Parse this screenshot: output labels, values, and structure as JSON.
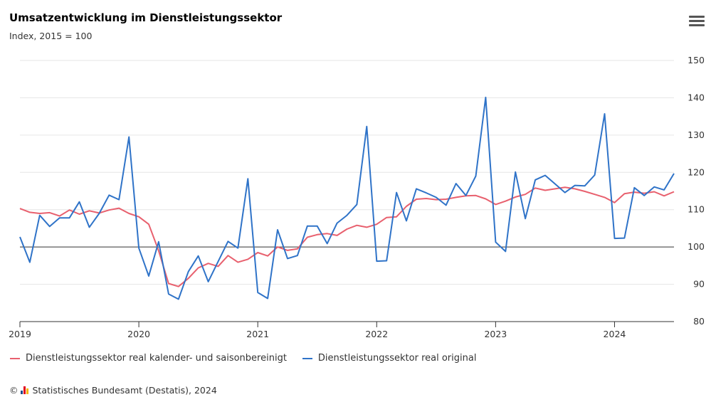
{
  "chart_data": {
    "type": "line",
    "title": "Umsatzentwicklung im Dienstleistungssektor",
    "subtitle": "Index, 2015 = 100",
    "x_tick_labels": [
      "2019",
      "2020",
      "2021",
      "2022",
      "2023",
      "2024"
    ],
    "y_tick_labels": [
      "80",
      "90",
      "100",
      "110",
      "120",
      "130",
      "140",
      "150"
    ],
    "ylim": [
      80,
      150
    ],
    "xlim": [
      "2019-01",
      "2024-07"
    ],
    "reference_line": 100,
    "grid": true,
    "y_axis_side": "right",
    "legend_position": "bottom-left",
    "x": [
      "2019-01",
      "2019-02",
      "2019-03",
      "2019-04",
      "2019-05",
      "2019-06",
      "2019-07",
      "2019-08",
      "2019-09",
      "2019-10",
      "2019-11",
      "2019-12",
      "2020-01",
      "2020-02",
      "2020-03",
      "2020-04",
      "2020-05",
      "2020-06",
      "2020-07",
      "2020-08",
      "2020-09",
      "2020-10",
      "2020-11",
      "2020-12",
      "2021-01",
      "2021-02",
      "2021-03",
      "2021-04",
      "2021-05",
      "2021-06",
      "2021-07",
      "2021-08",
      "2021-09",
      "2021-10",
      "2021-11",
      "2021-12",
      "2022-01",
      "2022-02",
      "2022-03",
      "2022-04",
      "2022-05",
      "2022-06",
      "2022-07",
      "2022-08",
      "2022-09",
      "2022-10",
      "2022-11",
      "2022-12",
      "2023-01",
      "2023-02",
      "2023-03",
      "2023-04",
      "2023-05",
      "2023-06",
      "2023-07",
      "2023-08",
      "2023-09",
      "2023-10",
      "2023-11",
      "2023-12",
      "2024-01",
      "2024-02",
      "2024-03",
      "2024-04",
      "2024-05",
      "2024-06",
      "2024-07"
    ],
    "series": [
      {
        "name": "Dienstleistungssektor real kalender- und saisonbereinigt",
        "color": "#e8606e",
        "values": [
          110.3,
          109.3,
          109.0,
          109.2,
          108.3,
          109.9,
          108.8,
          109.7,
          109.1,
          109.9,
          110.4,
          109.0,
          108.1,
          106.1,
          99.0,
          90.2,
          89.4,
          91.6,
          94.4,
          95.6,
          94.8,
          97.7,
          95.9,
          96.7,
          98.5,
          97.6,
          100.0,
          99.1,
          99.5,
          102.6,
          103.3,
          103.6,
          103.1,
          104.8,
          105.8,
          105.3,
          106.1,
          107.9,
          108.1,
          110.9,
          112.8,
          113.0,
          112.7,
          112.8,
          113.3,
          113.7,
          113.8,
          112.9,
          111.4,
          112.3,
          113.4,
          114.1,
          115.8,
          115.2,
          115.6,
          116.0,
          115.6,
          114.9,
          114.1,
          113.3,
          111.9,
          114.3,
          114.7,
          114.4,
          114.8,
          113.7,
          114.8
        ]
      },
      {
        "name": "Dienstleistungssektor real original",
        "color": "#2f73c8",
        "values": [
          102.7,
          95.9,
          108.5,
          105.5,
          107.8,
          107.8,
          112.1,
          105.3,
          109.0,
          113.9,
          112.7,
          129.5,
          99.7,
          92.2,
          101.4,
          87.4,
          86.0,
          93.4,
          97.6,
          90.7,
          96.1,
          101.5,
          99.7,
          118.3,
          87.8,
          86.2,
          104.6,
          96.9,
          97.7,
          105.6,
          105.6,
          100.9,
          106.4,
          108.5,
          111.4,
          132.3,
          96.2,
          96.3,
          114.6,
          107.0,
          115.6,
          114.5,
          113.3,
          111.2,
          117.0,
          113.8,
          119.0,
          140.1,
          101.3,
          98.8,
          120.1,
          107.6,
          118.0,
          119.2,
          116.9,
          114.6,
          116.5,
          116.4,
          119.3,
          135.7,
          102.3,
          102.4,
          115.9,
          113.8,
          116.1,
          115.3,
          119.7
        ]
      }
    ]
  },
  "credits": {
    "text": "Statistisches Bundesamt (Destatis), 2024",
    "copyright": "©"
  },
  "colors": {
    "grid": "#e6e6e6",
    "axis": "#333333",
    "reference_line": "#333333",
    "logo": [
      "#1f4e8c",
      "#e2001a",
      "#f4b400"
    ]
  },
  "icons": {
    "menu": "hamburger-menu-icon"
  }
}
